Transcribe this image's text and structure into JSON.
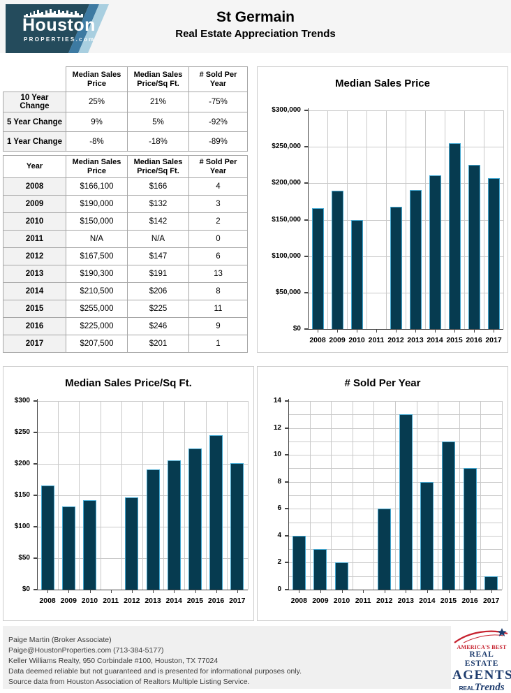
{
  "header": {
    "logo": {
      "line1": "Houston",
      "line2": "PROPERTIES.com"
    },
    "title": "St Germain",
    "subtitle": "Real Estate Appreciation Trends"
  },
  "summary_table": {
    "columns": [
      "",
      "Median Sales Price",
      "Median Sales Price/Sq Ft.",
      "# Sold Per Year"
    ],
    "rows": [
      {
        "label": "10 Year Change",
        "values": [
          "25%",
          "21%",
          "-75%"
        ]
      },
      {
        "label": "5 Year Change",
        "values": [
          "9%",
          "5%",
          "-92%"
        ]
      },
      {
        "label": "1 Year Change",
        "values": [
          "-8%",
          "-18%",
          "-89%"
        ]
      }
    ]
  },
  "yearly_table": {
    "columns": [
      "Year",
      "Median Sales Price",
      "Median Sales Price/Sq Ft.",
      "# Sold Per Year"
    ],
    "rows": [
      {
        "label": "2008",
        "values": [
          "$166,100",
          "$166",
          "4"
        ]
      },
      {
        "label": "2009",
        "values": [
          "$190,000",
          "$132",
          "3"
        ]
      },
      {
        "label": "2010",
        "values": [
          "$150,000",
          "$142",
          "2"
        ]
      },
      {
        "label": "2011",
        "values": [
          "N/A",
          "N/A",
          "0"
        ]
      },
      {
        "label": "2012",
        "values": [
          "$167,500",
          "$147",
          "6"
        ]
      },
      {
        "label": "2013",
        "values": [
          "$190,300",
          "$191",
          "13"
        ]
      },
      {
        "label": "2014",
        "values": [
          "$210,500",
          "$206",
          "8"
        ]
      },
      {
        "label": "2015",
        "values": [
          "$255,000",
          "$225",
          "11"
        ]
      },
      {
        "label": "2016",
        "values": [
          "$225,000",
          "$246",
          "9"
        ]
      },
      {
        "label": "2017",
        "values": [
          "$207,500",
          "$201",
          "1"
        ]
      }
    ]
  },
  "chart_data": [
    {
      "type": "bar",
      "title": "Median Sales Price",
      "categories": [
        "2008",
        "2009",
        "2010",
        "2011",
        "2012",
        "2013",
        "2014",
        "2015",
        "2016",
        "2017"
      ],
      "values": [
        166100,
        190000,
        150000,
        null,
        167500,
        190300,
        210500,
        255000,
        225000,
        207500
      ],
      "xlabel": "",
      "ylabel": "",
      "ylim": [
        0,
        300000
      ],
      "grid_step": 50000,
      "grid": true,
      "legend": "none",
      "y_ticks": [
        {
          "v": 0,
          "label": "$0"
        },
        {
          "v": 50000,
          "label": "$50,000"
        },
        {
          "v": 100000,
          "label": "$100,000"
        },
        {
          "v": 150000,
          "label": "$150,000"
        },
        {
          "v": 200000,
          "label": "$200,000"
        },
        {
          "v": 250000,
          "label": "$250,000"
        },
        {
          "v": 300000,
          "label": "$300,000"
        }
      ]
    },
    {
      "type": "bar",
      "title": "Median Sales Price/Sq Ft.",
      "categories": [
        "2008",
        "2009",
        "2010",
        "2011",
        "2012",
        "2013",
        "2014",
        "2015",
        "2016",
        "2017"
      ],
      "values": [
        166,
        132,
        142,
        null,
        147,
        191,
        206,
        225,
        246,
        201
      ],
      "xlabel": "",
      "ylabel": "",
      "ylim": [
        0,
        300
      ],
      "grid_step": 50,
      "grid": true,
      "legend": "none",
      "y_ticks": [
        {
          "v": 0,
          "label": "$0"
        },
        {
          "v": 50,
          "label": "$50"
        },
        {
          "v": 100,
          "label": "$100"
        },
        {
          "v": 150,
          "label": "$150"
        },
        {
          "v": 200,
          "label": "$200"
        },
        {
          "v": 250,
          "label": "$250"
        },
        {
          "v": 300,
          "label": "$300"
        }
      ]
    },
    {
      "type": "bar",
      "title": "# Sold Per Year",
      "categories": [
        "2008",
        "2009",
        "2010",
        "2011",
        "2012",
        "2013",
        "2014",
        "2015",
        "2016",
        "2017"
      ],
      "values": [
        4,
        3,
        2,
        0,
        6,
        13,
        8,
        11,
        9,
        1
      ],
      "xlabel": "",
      "ylabel": "",
      "ylim": [
        0,
        14
      ],
      "grid_step": 1,
      "label_step": 2,
      "grid": true,
      "legend": "none",
      "y_ticks": [
        {
          "v": 0,
          "label": "0"
        },
        {
          "v": 2,
          "label": "2"
        },
        {
          "v": 4,
          "label": "4"
        },
        {
          "v": 6,
          "label": "6"
        },
        {
          "v": 8,
          "label": "8"
        },
        {
          "v": 10,
          "label": "10"
        },
        {
          "v": 12,
          "label": "12"
        },
        {
          "v": 14,
          "label": "14"
        }
      ]
    }
  ],
  "footer": {
    "lines": [
      "Paige Martin (Broker Associate)",
      "Paige@HoustonProperties.com (713-384-5177)",
      "Keller Williams Realty, 950 Corbindale #100, Houston, TX 77024",
      "Data deemed reliable but not guaranteed and is presented for informational purposes only.",
      "Source data from Houston Association of Realtors Multiple Listing Service."
    ],
    "badge": {
      "line1": "AMERICA'S BEST",
      "line2": "REAL ESTATE",
      "line3": "AGENTS",
      "line4a": "REAL",
      "line4b": "Trends"
    }
  },
  "colors": {
    "bar_fill": "#063b50",
    "bar_border": "#45a9d2",
    "logo_dark": "#244b5c",
    "stripe_mid": "#3d7aa2",
    "stripe_light": "#a9cfe0",
    "badge_red": "#c6212e",
    "badge_navy": "#1e3c6e",
    "header_band": "#f5f5f5",
    "footer_band": "#f0f0f0"
  }
}
